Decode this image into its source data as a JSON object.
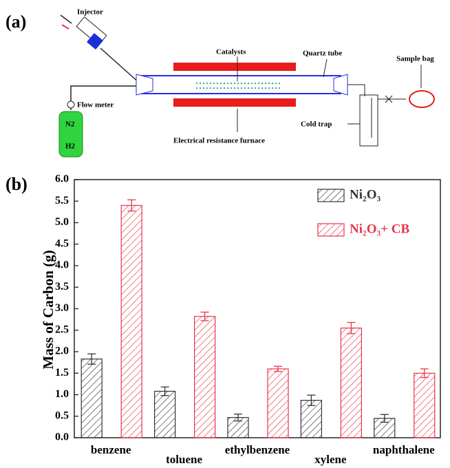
{
  "panels": [
    "(a)",
    "(b)"
  ],
  "diagram": {
    "injector": "Injector",
    "catalysts": "Catalysts",
    "quartz_tube": "Quartz tube",
    "sample_bag": "Sample bag",
    "flow_meter": "Flow meter",
    "cold_trap": "Cold trap",
    "furnace": "Electrical resistance furnace",
    "gas_1": "N2",
    "gas_2": "H2"
  },
  "chart_data": {
    "type": "bar",
    "y_label": "Mass of  Carbon (g)",
    "categories": [
      "benzene",
      "toluene",
      "ethylbenzene",
      "xylene",
      "naphthalene"
    ],
    "series": [
      {
        "name": "Ni₂O₃",
        "color": "#333333",
        "values": [
          1.83,
          1.08,
          0.47,
          0.87,
          0.45
        ],
        "errors": [
          0.12,
          0.1,
          0.08,
          0.12,
          0.09
        ]
      },
      {
        "name": "Ni₂O₃+ CB",
        "color": "#e8334a",
        "values": [
          5.4,
          2.82,
          1.6,
          2.55,
          1.5
        ],
        "errors": [
          0.13,
          0.1,
          0.06,
          0.13,
          0.1
        ]
      }
    ],
    "ylim": [
      0,
      6
    ],
    "yticks": [
      {
        "value": 0,
        "label": "0.0"
      },
      {
        "value": 0.5,
        "label": "0.5"
      },
      {
        "value": 1,
        "label": "1.0"
      },
      {
        "value": 1.5,
        "label": "1.5"
      },
      {
        "value": 2,
        "label": "2.0"
      },
      {
        "value": 2.5,
        "label": "2.5"
      },
      {
        "value": 3,
        "label": "3.0"
      },
      {
        "value": 3.5,
        "label": "3.5"
      },
      {
        "value": 4,
        "label": "4.0"
      },
      {
        "value": 4.5,
        "label": "4.5"
      },
      {
        "value": 5,
        "label": "5.0"
      },
      {
        "value": 5.5,
        "label": "5.5"
      },
      {
        "value": 6,
        "label": "6.0"
      }
    ],
    "hatch": true,
    "legend": "upper right"
  }
}
